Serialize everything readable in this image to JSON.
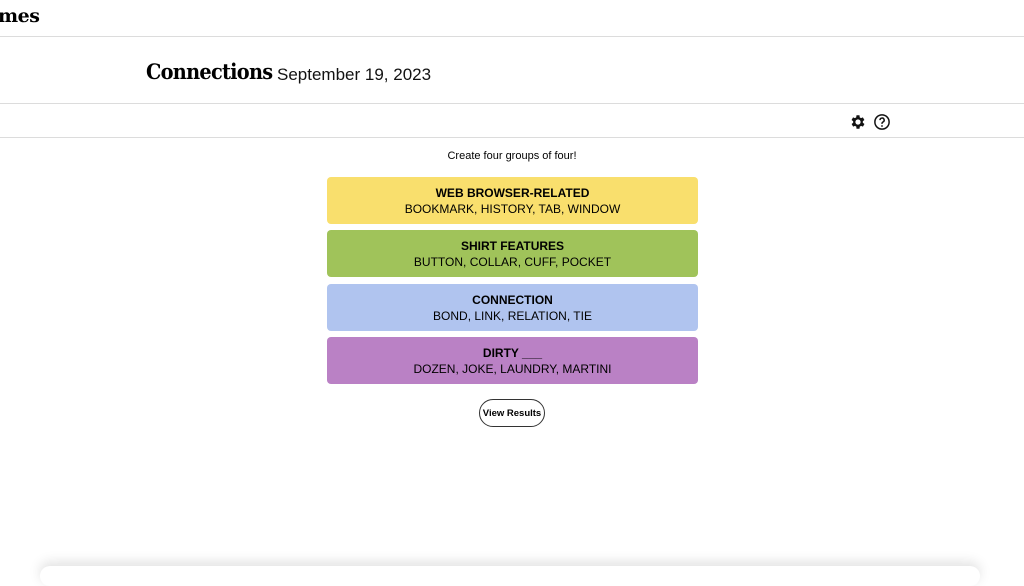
{
  "header": {
    "logo_fragment": "mes",
    "title": "Connections",
    "date": "September 19, 2023"
  },
  "toolbar": {
    "icons": [
      "gear-icon",
      "help-icon"
    ]
  },
  "game": {
    "prompt": "Create four groups of four!",
    "groups": [
      {
        "category": "WEB BROWSER-RELATED",
        "words": "BOOKMARK, HISTORY, TAB, WINDOW",
        "color": "#f9df6d"
      },
      {
        "category": "SHIRT FEATURES",
        "words": "BUTTON, COLLAR, CUFF, POCKET",
        "color": "#a0c35a"
      },
      {
        "category": "CONNECTION",
        "words": "BOND, LINK, RELATION, TIE",
        "color": "#b0c4ef"
      },
      {
        "category": "DIRTY ___",
        "words": "DOZEN, JOKE, LAUNDRY, MARTINI",
        "color": "#ba81c5"
      }
    ],
    "view_results_label": "View Results"
  }
}
